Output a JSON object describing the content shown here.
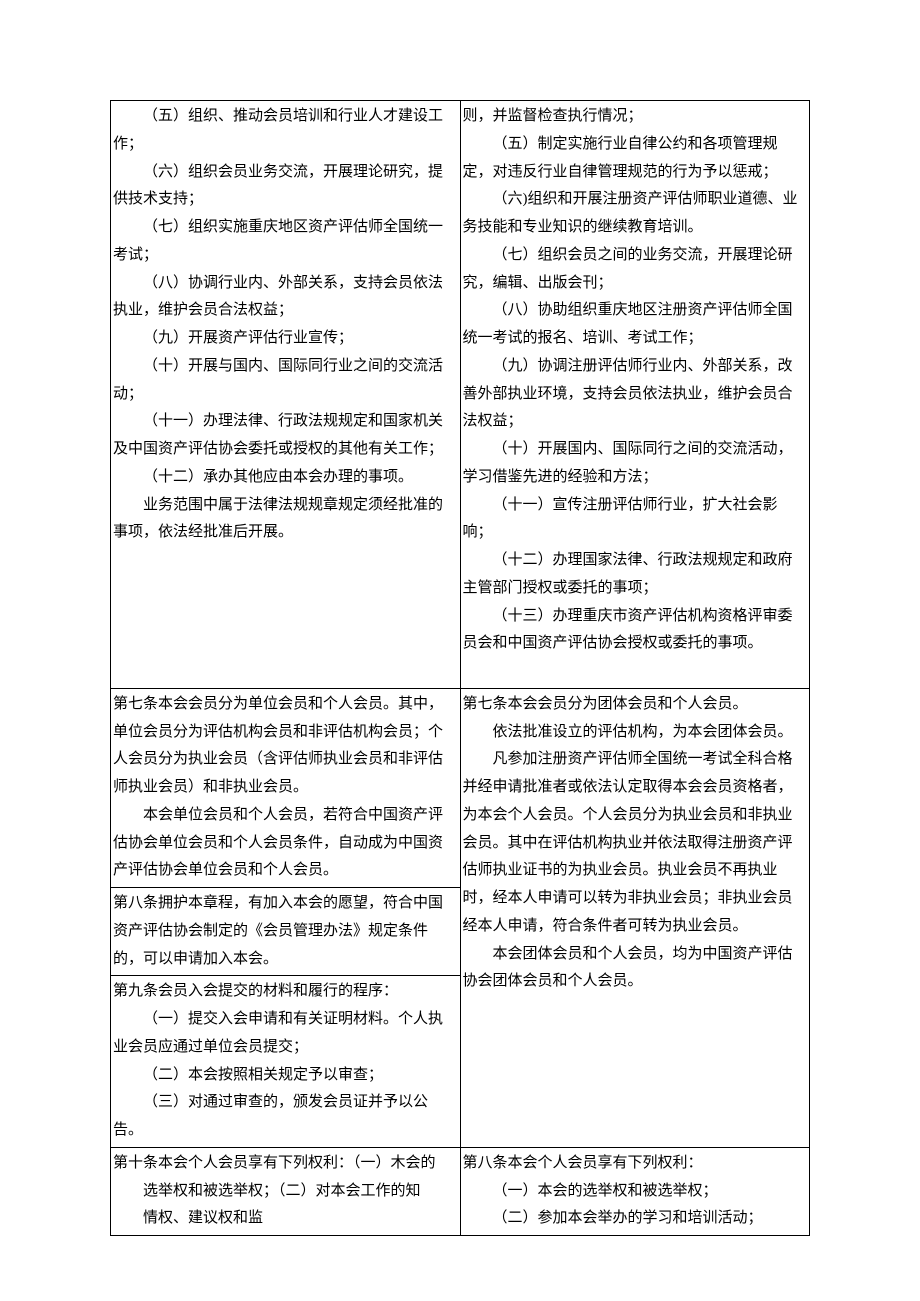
{
  "colors": {
    "text": "#000000",
    "background": "#ffffff",
    "border": "#000000"
  },
  "typography": {
    "font_family": "SimSun",
    "font_size_pt": 11,
    "line_height": 1.85
  },
  "table": {
    "rows": [
      {
        "left_paras": [
          {
            "cls": "para",
            "text": "（五）组织、推动会员培训和行业人才建设工作；"
          },
          {
            "cls": "para",
            "text": "（六）组织会员业务交流，开展理论研究，提供技术支持；"
          },
          {
            "cls": "para",
            "text": "（七）组织实施重庆地区资产评估师全国统一考试；"
          },
          {
            "cls": "para",
            "text": "（八）协调行业内、外部关系，支持会员依法执业，维护会员合法权益；"
          },
          {
            "cls": "para",
            "text": "（九）开展资产评估行业宣传；"
          },
          {
            "cls": "para",
            "text": "（十）开展与国内、国际同行业之间的交流活动；"
          },
          {
            "cls": "para",
            "text": "（十一）办理法律、行政法规规定和国家机关及中国资产评估协会委托或授权的其他有关工作；"
          },
          {
            "cls": "para",
            "text": "（十二）承办其他应由本会办理的事项。"
          },
          {
            "cls": "para",
            "text": "业务范围中属于法律法规规章规定须经批准的事项，依法经批准后开展。"
          }
        ],
        "right_paras": [
          {
            "cls": "para-firstflush",
            "text": "则，并监督检查执行情况；"
          },
          {
            "cls": "para",
            "text": "（五）制定实施行业自律公约和各项管理规定，对违反行业自律管理规范的行为予以惩戒；"
          },
          {
            "cls": "para",
            "text": "（六)组织和开展注册资产评估师职业道德、业务技能和专业知识的继续教育培训。"
          },
          {
            "cls": "para",
            "text": "（七）组织会员之间的业务交流，开展理论研究，编辑、出版会刊；"
          },
          {
            "cls": "para",
            "text": "（八）协助组织重庆地区注册资产评估师全国统一考试的报名、培训、考试工作；"
          },
          {
            "cls": "para",
            "text": "（九）协调注册评估师行业内、外部关系，改善外部执业环境，支持会员依法执业，维护会员合法权益；"
          },
          {
            "cls": "para",
            "text": "（十）开展国内、国际同行之间的交流活动，学习借鉴先进的经验和方法；"
          },
          {
            "cls": "para",
            "text": "（十一）宣传注册评估师行业，扩大社会影响；"
          },
          {
            "cls": "para",
            "text": "（十二）办理国家法律、行政法规规定和政府主管部门授权或委托的事项；"
          },
          {
            "cls": "para",
            "text": "（十三）办理重庆市资产评估机构资格评审委员会和中国资产评估协会授权或委托的事项。"
          },
          {
            "cls": "para-noindent",
            "text": " "
          }
        ]
      },
      {
        "left_paras": [
          {
            "cls": "para-noindent",
            "text": "第七条本会会员分为单位会员和个人会员。其中，单位会员分为评估机构会员和非评估机构会员；个人会员分为执业会员（含评估师执业会员和非评估师执业会员）和非执业会员。"
          },
          {
            "cls": "para",
            "text": "本会单位会员和个人会员，若符合中国资产评估协会单位会员和个人会员条件，自动成为中国资产评估协会单位会员和个人会员。"
          }
        ],
        "left_rowspan": 1,
        "right_paras": [
          {
            "cls": "para-noindent",
            "text": "第七条本会会员分为团体会员和个人会员。"
          },
          {
            "cls": "para",
            "text": "依法批准设立的评估机构，为本会团体会员。"
          },
          {
            "cls": "para",
            "text": "凡参加注册资产评估师全国统一考试全科合格并经申请批准者或依法认定取得本会会员资格者，为本会个人会员。个人会员分为执业会员和非执业会员。其中在评估机构执业并依法取得注册资产评估师执业证书的为执业会员。执业会员不再执业时，经本人申请可以转为非执业会员；非执业会员经本人申请，符合条件者可转为执业会员。"
          },
          {
            "cls": "para",
            "text": "本会团体会员和个人会员，均为中国资产评估协会团体会员和个人会员。"
          },
          {
            "cls": "para-noindent",
            "text": " "
          }
        ],
        "right_rowspan": 3
      },
      {
        "left_paras": [
          {
            "cls": "para-noindent",
            "text": "第八条拥护本章程，有加入本会的愿望，符合中国资产评估协会制定的《会员管理办法》规定条件的，可以申请加入本会。"
          }
        ]
      },
      {
        "left_paras": [
          {
            "cls": "para-noindent",
            "text": "第九条会员入会提交的材料和履行的程序："
          },
          {
            "cls": "para",
            "text": "（一）提交入会申请和有关证明材料。个人执业会员应通过单位会员提交；"
          },
          {
            "cls": "para",
            "text": "（二）本会按照相关规定予以审查；"
          },
          {
            "cls": "para",
            "text": "（三）对通过审查的，颁发会员证并予以公告。"
          }
        ]
      },
      {
        "left_paras": [
          {
            "cls": "para-noindent",
            "text": "第十条本会个人会员享有下列权利：（一）木会的"
          },
          {
            "cls": "item-indent",
            "text": "选举权和被选举权；（二）对本会工作的知"
          },
          {
            "cls": "item-indent",
            "text": "情权、建议权和监"
          }
        ],
        "right_paras": [
          {
            "cls": "para-noindent",
            "text": "第八条本会个人会员享有下列权利："
          },
          {
            "cls": "para",
            "text": "（一）本会的选举权和被选举权；"
          },
          {
            "cls": "para",
            "text": "（二）参加本会举办的学习和培训活动；"
          }
        ]
      }
    ]
  }
}
